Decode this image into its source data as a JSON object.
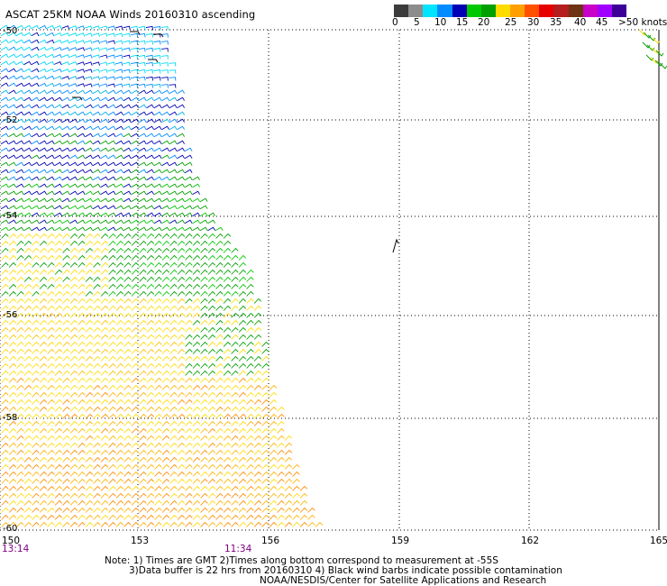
{
  "title": "ASCAT 25KM NOAA Winds 20160310 ascending",
  "legend": {
    "colors": [
      "#3c3c3c",
      "#8c8c8c",
      "#00e5ff",
      "#008cff",
      "#0000b4",
      "#00c800",
      "#00a000",
      "#ffdc00",
      "#ffa000",
      "#ff5000",
      "#e60000",
      "#b41e1e",
      "#6e3214",
      "#c800c8",
      "#a000ff",
      "#3c0096"
    ],
    "labels": [
      "0",
      "5",
      "10",
      "15",
      "20",
      "25",
      "30",
      "35",
      "40",
      "45",
      ">50 knots"
    ]
  },
  "axes": {
    "lat_labels": [
      "-50",
      "-52",
      "-54",
      "-56",
      "-58",
      "-60"
    ],
    "lon_labels": [
      "150",
      "153",
      "156",
      "159",
      "162",
      "165"
    ],
    "time_labels": [
      "13:14",
      "11:34"
    ]
  },
  "notes": {
    "line1": "Note: 1) Times are GMT 2)Times along bottom correspond to measurement at -55S",
    "line2": "3)Data buffer is 22 hrs from 20160310 4) Black wind barbs indicate possible contamination",
    "line3": "NOAA/NESDIS/Center for Satellite Applications and Research"
  }
}
